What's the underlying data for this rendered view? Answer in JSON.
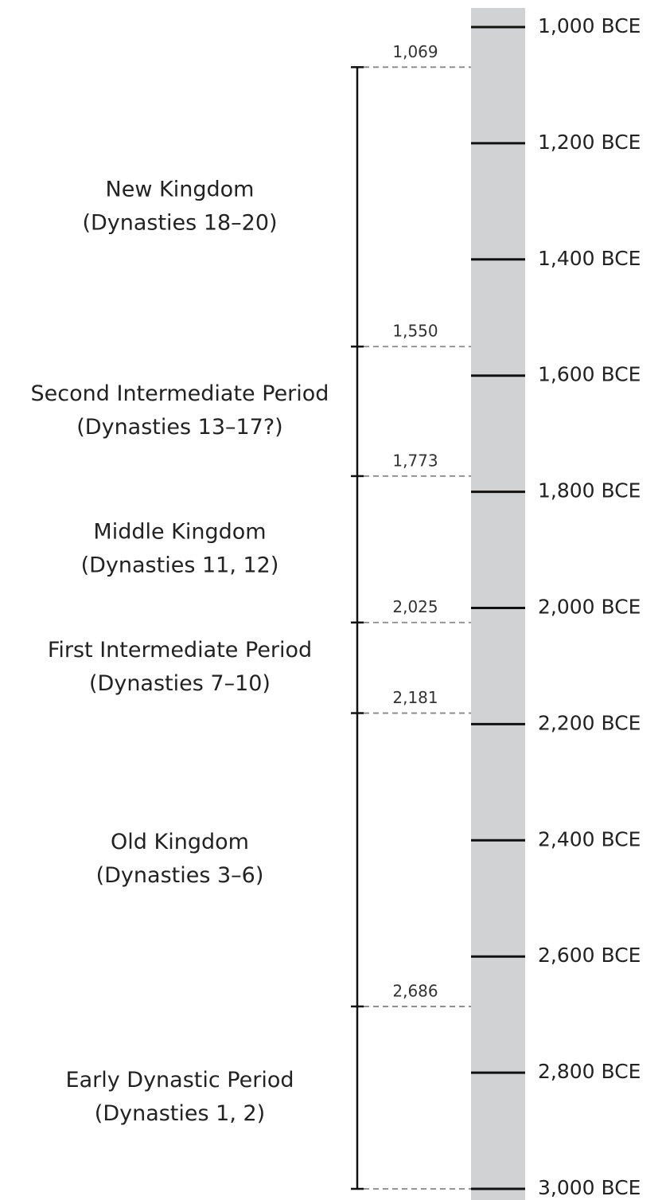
{
  "timeline": {
    "ylim": [
      1000,
      3000
    ],
    "ticks": [
      {
        "value": 1000,
        "label": "1,000 BCE"
      },
      {
        "value": 1200,
        "label": "1,200 BCE"
      },
      {
        "value": 1400,
        "label": "1,400 BCE"
      },
      {
        "value": 1600,
        "label": "1,600 BCE"
      },
      {
        "value": 1800,
        "label": "1,800 BCE"
      },
      {
        "value": 2000,
        "label": "2,000 BCE"
      },
      {
        "value": 2200,
        "label": "2,200 BCE"
      },
      {
        "value": 2400,
        "label": "2,400 BCE"
      },
      {
        "value": 2600,
        "label": "2,600 BCE"
      },
      {
        "value": 2800,
        "label": "2,800 BCE"
      },
      {
        "value": 3000,
        "label": "3,000 BCE"
      }
    ],
    "boundaries": [
      {
        "value": 1069,
        "label": "1,069"
      },
      {
        "value": 1550,
        "label": "1,550"
      },
      {
        "value": 1773,
        "label": "1,773"
      },
      {
        "value": 2025,
        "label": "2,025"
      },
      {
        "value": 2181,
        "label": "2,181"
      },
      {
        "value": 2686,
        "label": "2,686"
      }
    ],
    "periods": [
      {
        "name": "New Kingdom",
        "dynasties": "(Dynasties 18–20)"
      },
      {
        "name": "Second Intermediate Period",
        "dynasties": "(Dynasties 13–17?)"
      },
      {
        "name": "Middle Kingdom",
        "dynasties": "(Dynasties 11, 12)"
      },
      {
        "name": "First Intermediate Period",
        "dynasties": "(Dynasties 7–10)"
      },
      {
        "name": "Old Kingdom",
        "dynasties": "(Dynasties 3–6)"
      },
      {
        "name": "Early Dynastic Period",
        "dynasties": "(Dynasties 1, 2)"
      }
    ]
  }
}
